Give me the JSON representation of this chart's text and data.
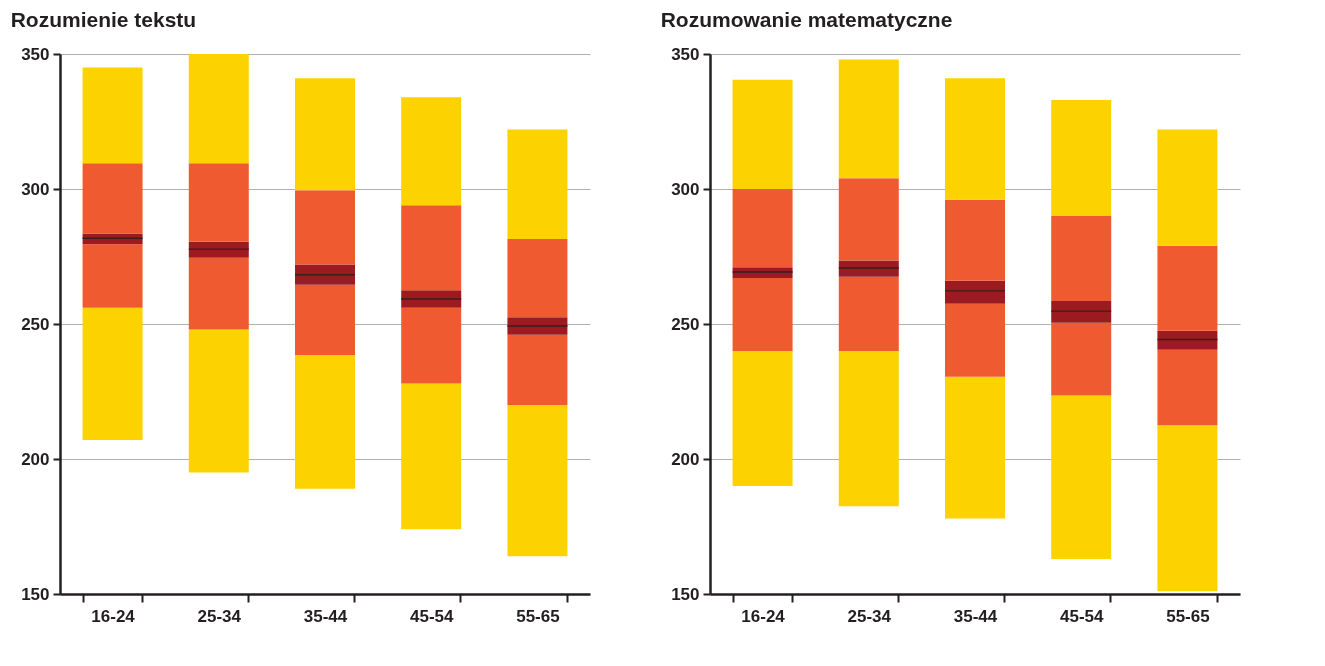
{
  "chart_data": [
    {
      "type": "bar",
      "title": "Rozumienie tekstu",
      "categories": [
        "16-24",
        "25-34",
        "35-44",
        "45-54",
        "55-65"
      ],
      "series": [
        {
          "color": "#fcd200",
          "base": [
            207,
            195,
            189,
            174,
            164
          ],
          "values": [
            49,
            53,
            49.5,
            54,
            56
          ]
        },
        {
          "color": "#f05a30",
          "base": [
            256,
            248,
            238.5,
            228,
            220
          ],
          "values": [
            23.5,
            26.5,
            26,
            28,
            26
          ]
        },
        {
          "color": "#9b1b20",
          "base": [
            279.5,
            274.5,
            264.5,
            256,
            246
          ],
          "values": [
            4,
            6,
            7.5,
            6.5,
            6.5
          ]
        },
        {
          "color": "#f05a30",
          "base": [
            283.5,
            280.5,
            272,
            262.5,
            252.5
          ],
          "values": [
            26,
            29,
            27.5,
            31.5,
            29
          ]
        },
        {
          "color": "#fcd200",
          "base": [
            309.5,
            309.5,
            299.5,
            294,
            281.5
          ],
          "values": [
            35.5,
            40.5,
            41.5,
            40,
            40.5
          ]
        },
        {
          "color": "#3a1e1e",
          "base": [
            281.5,
            277.5,
            268,
            259,
            249
          ],
          "values": [
            0.5,
            0.5,
            0.5,
            0.5,
            0.5
          ]
        }
      ],
      "ylim": [
        150,
        350
      ],
      "yticks": [
        150,
        200,
        250,
        300,
        350
      ],
      "grid": "y",
      "legend": false
    },
    {
      "type": "bar",
      "title": "Rozumowanie matematyczne",
      "categories": [
        "16-24",
        "25-34",
        "35-44",
        "45-54",
        "55-65"
      ],
      "series": [
        {
          "color": "#fcd200",
          "base": [
            190,
            182.5,
            178,
            163,
            151
          ],
          "values": [
            50,
            57.5,
            52.5,
            60.5,
            61.5
          ]
        },
        {
          "color": "#f05a30",
          "base": [
            240,
            240,
            230.5,
            223.5,
            212.5
          ],
          "values": [
            27,
            27.5,
            27,
            27,
            28
          ]
        },
        {
          "color": "#9b1b20",
          "base": [
            267,
            267.5,
            257.5,
            250.5,
            240.5
          ],
          "values": [
            4,
            6,
            8.5,
            8,
            7
          ]
        },
        {
          "color": "#f05a30",
          "base": [
            271,
            273.5,
            266,
            258.5,
            247.5
          ],
          "values": [
            29,
            30.5,
            30,
            31.5,
            31.5
          ]
        },
        {
          "color": "#fcd200",
          "base": [
            300,
            304,
            296,
            290,
            279
          ],
          "values": [
            40.5,
            44,
            45,
            43,
            43
          ]
        },
        {
          "color": "#3a1e1e",
          "base": [
            269,
            270.5,
            262,
            254.5,
            244
          ],
          "values": [
            0.5,
            0.5,
            0.5,
            0.5,
            0.5
          ]
        }
      ],
      "ylim": [
        150,
        350
      ],
      "yticks": [
        150,
        200,
        250,
        300,
        350
      ],
      "grid": "y",
      "legend": false
    }
  ]
}
